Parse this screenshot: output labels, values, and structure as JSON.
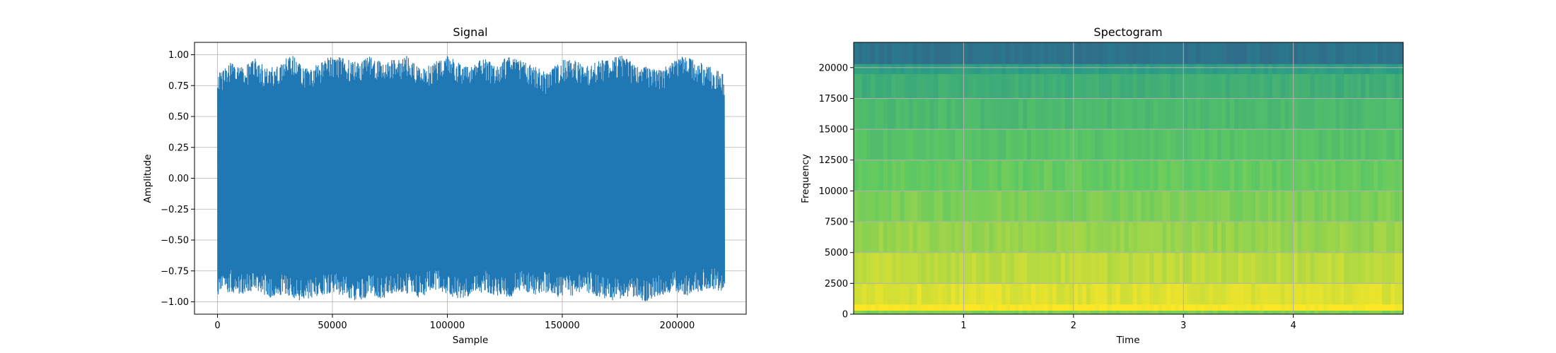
{
  "figure": {
    "background": "#ffffff"
  },
  "chart_data": [
    {
      "type": "line",
      "title": "Signal",
      "xlabel": "Sample",
      "ylabel": "Amplitude",
      "xlim": [
        -10000,
        230000
      ],
      "ylim": [
        -1.1,
        1.1
      ],
      "xticks": [
        0,
        50000,
        100000,
        150000,
        200000
      ],
      "xtick_labels": [
        "0",
        "50000",
        "100000",
        "150000",
        "200000"
      ],
      "yticks": [
        -1.0,
        -0.75,
        -0.5,
        -0.25,
        0.0,
        0.25,
        0.5,
        0.75,
        1.0
      ],
      "ytick_labels": [
        "−1.00",
        "−0.75",
        "−0.50",
        "−0.25",
        "0.00",
        "0.25",
        "0.50",
        "0.75",
        "1.00"
      ],
      "grid": true,
      "color": "#1f77b4",
      "series": [
        {
          "x_range": [
            0,
            220500
          ],
          "envelope_upper": [
            0.85,
            0.95,
            0.9,
            0.98,
            0.88,
            0.95,
            1.0,
            0.9,
            0.92,
            1.0,
            0.97,
            0.94,
            1.0,
            0.95,
            0.96,
            1.0,
            0.9,
            0.93,
            1.0,
            0.95,
            0.9,
            0.98,
            0.92,
            1.0,
            0.95,
            0.92,
            0.85,
            0.95,
            0.98,
            0.9,
            0.95,
            0.97,
            1.0,
            0.92,
            0.9,
            0.88,
            0.95,
            1.0,
            0.94,
            0.9,
            0.85
          ],
          "envelope_lower": [
            -0.95,
            -0.92,
            -0.95,
            -0.9,
            -0.97,
            -0.95,
            -0.98,
            -1.0,
            -0.95,
            -0.93,
            -0.96,
            -1.0,
            -0.95,
            -0.98,
            -0.92,
            -0.95,
            -0.97,
            -0.9,
            -0.94,
            -0.98,
            -0.95,
            -0.92,
            -0.95,
            -0.97,
            -0.9,
            -0.95,
            -0.93,
            -0.98,
            -0.95,
            -0.92,
            -0.96,
            -1.0,
            -0.97,
            -0.98,
            -1.0,
            -0.95,
            -0.93,
            -0.96,
            -0.92,
            -0.9,
            -0.93
          ]
        }
      ]
    },
    {
      "type": "heatmap",
      "title": "Spectogram",
      "xlabel": "Time",
      "ylabel": "Frequency",
      "xlim": [
        0,
        5.0
      ],
      "ylim": [
        0,
        22050
      ],
      "xticks": [
        1,
        2,
        3,
        4
      ],
      "xtick_labels": [
        "1",
        "2",
        "3",
        "4"
      ],
      "yticks": [
        0,
        2500,
        5000,
        7500,
        10000,
        12500,
        15000,
        17500,
        20000
      ],
      "ytick_labels": [
        "0",
        "2500",
        "5000",
        "7500",
        "10000",
        "12500",
        "15000",
        "17500",
        "20000"
      ],
      "grid": true,
      "colormap": "viridis",
      "frequency_bands": [
        {
          "from": 0,
          "to": 300,
          "level": 0.8
        },
        {
          "from": 300,
          "to": 800,
          "level": 1.0
        },
        {
          "from": 800,
          "to": 2500,
          "level": 0.95
        },
        {
          "from": 2500,
          "to": 5000,
          "level": 0.9
        },
        {
          "from": 5000,
          "to": 7500,
          "level": 0.84
        },
        {
          "from": 7500,
          "to": 10000,
          "level": 0.8
        },
        {
          "from": 10000,
          "to": 12500,
          "level": 0.76
        },
        {
          "from": 12500,
          "to": 15000,
          "level": 0.72
        },
        {
          "from": 15000,
          "to": 17500,
          "level": 0.68
        },
        {
          "from": 17500,
          "to": 19500,
          "level": 0.63
        },
        {
          "from": 19500,
          "to": 20300,
          "level": 0.56
        },
        {
          "from": 20300,
          "to": 22050,
          "level": 0.38
        }
      ]
    }
  ]
}
